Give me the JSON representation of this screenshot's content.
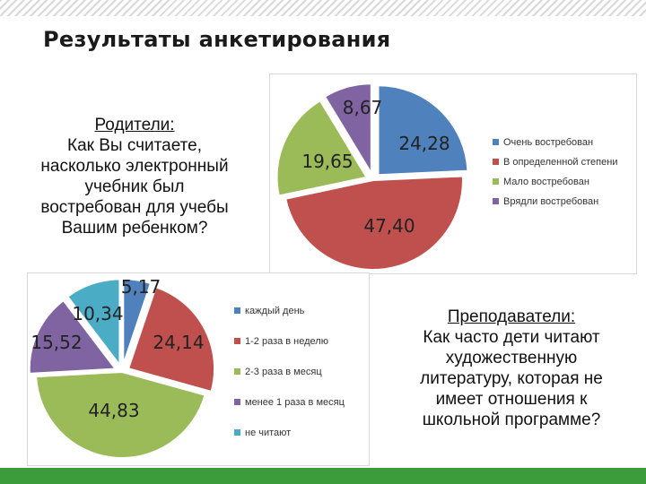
{
  "title": "Результаты анкетирования",
  "parents_question": {
    "heading": "Родители:",
    "lines": [
      "Как Вы считаете,",
      "насколько электронный",
      "учебник был",
      "востребован для учебы",
      "Вашим ребенком?"
    ]
  },
  "teachers_question": {
    "heading": "Преподаватели:",
    "lines": [
      "Как часто дети читают",
      "художественную",
      "литературу, которая не",
      "имеет отношения к",
      "школьной программе?"
    ]
  },
  "chart_data": [
    {
      "type": "pie",
      "categories": [
        "Очень востребован",
        "В определенной степени",
        "Мало востребован",
        "Врядли востребован"
      ],
      "values": [
        24.28,
        47.4,
        19.65,
        8.67
      ],
      "data_labels": [
        "24,28",
        "47,40",
        "19,65",
        "8,67"
      ],
      "colors": [
        "#4f81bd",
        "#c0504d",
        "#9bbb59",
        "#8064a2"
      ],
      "legend_position": "right"
    },
    {
      "type": "pie",
      "categories": [
        "каждый день",
        "1-2 раза в неделю",
        "2-3 раза в месяц",
        "менее 1 раза в месяц",
        "не читают"
      ],
      "values": [
        5.17,
        24.14,
        44.83,
        15.52,
        10.34
      ],
      "data_labels": [
        "5,17",
        "24,14",
        "44,83",
        "15,52",
        "10,34"
      ],
      "colors": [
        "#4f81bd",
        "#c0504d",
        "#9bbb59",
        "#8064a2",
        "#4bacc6"
      ],
      "legend_position": "right"
    }
  ]
}
